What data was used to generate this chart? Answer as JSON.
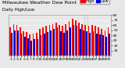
{
  "title": "Milwaukee Weather Dew Point",
  "subtitle": "Daily High/Low",
  "background_color": "#e8e8e8",
  "plot_bg_color": "#e8e8e8",
  "grid_color": "#ffffff",
  "ylim": [
    0,
    80
  ],
  "yticks": [
    10,
    20,
    30,
    40,
    50,
    60,
    70,
    80
  ],
  "legend_labels": [
    "High",
    "Low"
  ],
  "high_color": "#ff0000",
  "low_color": "#0000cc",
  "dew_high": [
    55,
    62,
    61,
    55,
    48,
    46,
    42,
    44,
    45,
    52,
    55,
    58,
    60,
    62,
    65,
    60,
    58,
    62,
    68,
    72,
    70,
    65,
    62,
    60,
    58,
    60,
    58,
    55,
    52,
    50,
    55
  ],
  "dew_low": [
    45,
    50,
    50,
    44,
    38,
    35,
    30,
    32,
    33,
    40,
    44,
    46,
    50,
    52,
    55,
    48,
    45,
    50,
    56,
    60,
    58,
    52,
    50,
    48,
    45,
    48,
    44,
    42,
    40,
    38,
    44
  ],
  "xlabels": [
    "1",
    "2",
    "3",
    "4",
    "5",
    "6",
    "7",
    "8",
    "9",
    "10",
    "11",
    "12",
    "13",
    "14",
    "15",
    "16",
    "17",
    "18",
    "19",
    "20",
    "21",
    "22",
    "23",
    "24",
    "25",
    "26",
    "27",
    "28",
    "29",
    "30",
    "31"
  ],
  "dotted_vline_pairs": [
    [
      22,
      23
    ]
  ],
  "title_fontsize": 4.5,
  "axis_fontsize": 3.2,
  "legend_fontsize": 3.5,
  "bar_width": 0.42
}
